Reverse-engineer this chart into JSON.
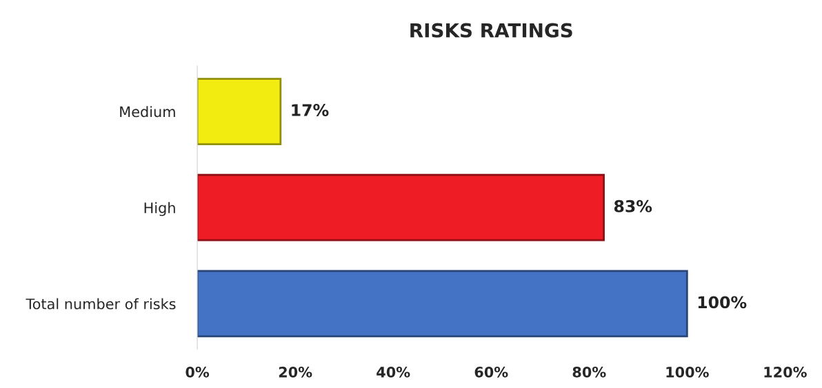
{
  "chart_data": {
    "type": "bar",
    "orientation": "horizontal",
    "title": "RISKS RATINGS",
    "categories": [
      "Medium",
      "High",
      "Total number of risks"
    ],
    "values": [
      17,
      83,
      100
    ],
    "colors": [
      "#f2ec10",
      "#ee1c25",
      "#4472c4"
    ],
    "data_labels": true,
    "value_labels": [
      "17%",
      "83%",
      "100%"
    ],
    "xlim": [
      0,
      120
    ],
    "xticks": [
      {
        "value": 0,
        "label": "0%"
      },
      {
        "value": 20,
        "label": "20%"
      },
      {
        "value": 40,
        "label": "40%"
      },
      {
        "value": 60,
        "label": "60%"
      },
      {
        "value": 80,
        "label": "80%"
      },
      {
        "value": 100,
        "label": "100%"
      },
      {
        "value": 120,
        "label": "120%"
      }
    ],
    "grid": false,
    "legend": false
  }
}
